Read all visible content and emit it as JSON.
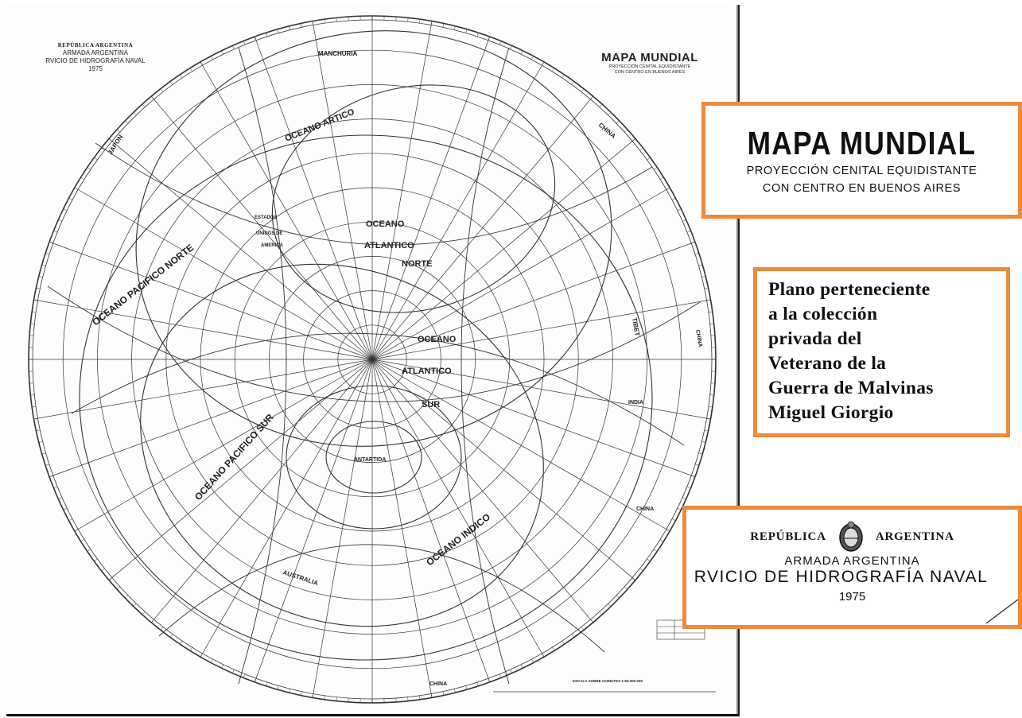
{
  "map_header_left": {
    "row1": "REPÚBLICA  ARGENTINA",
    "row2": "ARMADA ARGENTINA",
    "row3": "RVICIO DE HIDROGRAFÍA NAVAL",
    "row4": "1975"
  },
  "map_header_right": {
    "title": "MAPA MUNDIAL",
    "subtitle1": "PROYECCIÓN CENITAL EQUIDISTANTE",
    "subtitle2": "CON CENTRO EN BUENOS AIRES"
  },
  "title_box": {
    "title": "MAPA MUNDIAL",
    "subtitle1": "PROYECCIÓN CENITAL EQUIDISTANTE",
    "subtitle2": "CON CENTRO EN BUENOS AIRES"
  },
  "collection_note": "Plano perteneciente\na la colección\nprivada del\nVeterano de la\nGuerra de Malvinas\nMiguel Giorgio",
  "seal_box": {
    "left_word": "REPÚBLICA",
    "right_word": "ARGENTINA",
    "line2": "ARMADA ARGENTINA",
    "line3": "RVICIO DE HIDROGRAFÍA NAVAL",
    "year": "1975"
  },
  "map_labels": {
    "manchuria": "MANCHURIA",
    "china": "CHINA",
    "oceano_artico": "OCEANO ARTICO",
    "estados_unidos": "ESTADOS",
    "unidos": "UNIDOS DE",
    "america": "AMERICA",
    "oceano_atl_norte_1": "OCEANO",
    "oceano_atl_norte_2": "ATLANTICO",
    "oceano_atl_norte_3": "NORTE",
    "pacifico_norte": "OCEANO PACIFICO NORTE",
    "oceano_atl_sur_1": "OCEANO",
    "oceano_atl_sur_2": "ATLANTICO",
    "oceano_atl_sur_3": "SUR",
    "pacifico_sur": "OCEANO PACIFICO SUR",
    "antartida": "ANTARTIDA",
    "australia": "AUSTRALIA",
    "india": "INDIA",
    "tibet": "TIBET",
    "indico": "OCEANO INDICO",
    "japon": "JAPON",
    "scale": "ESCALA SOBRE ACIMUTES 1:50.000.000"
  },
  "colors": {
    "frame": "#ef8a3a",
    "ink": "#222222"
  }
}
